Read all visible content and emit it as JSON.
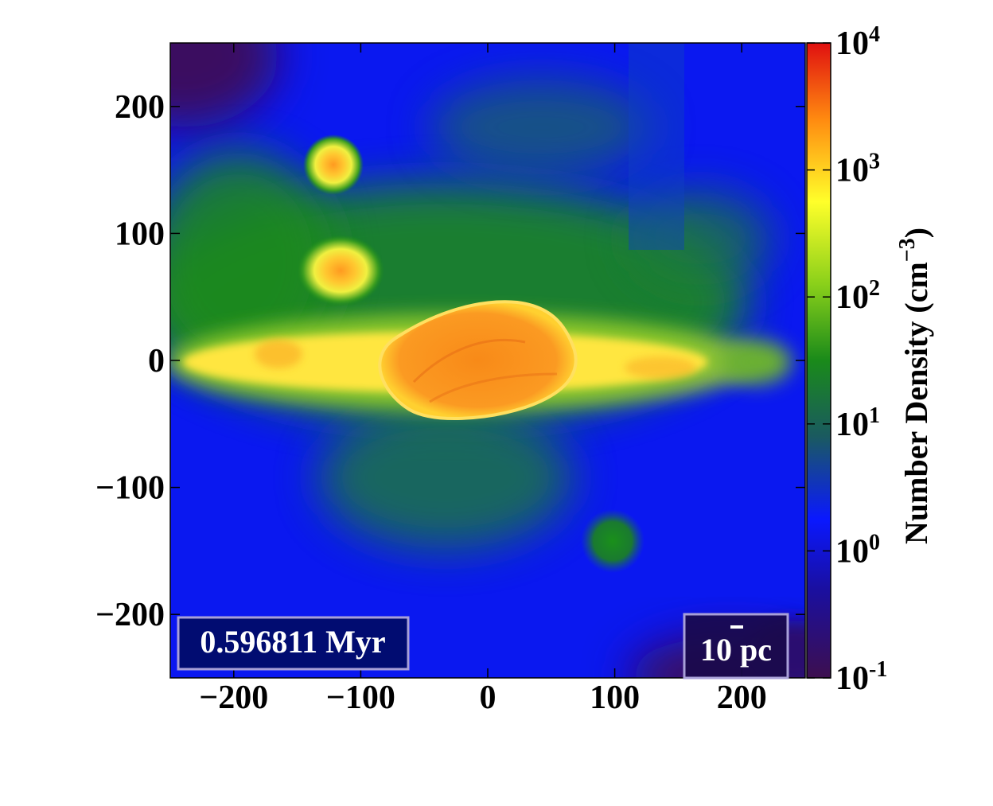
{
  "chart_data": {
    "type": "heatmap",
    "title": "",
    "xlabel": "",
    "ylabel": "",
    "xlim": [
      -250,
      250
    ],
    "ylim": [
      -250,
      250
    ],
    "x_ticks": [
      -200,
      -100,
      0,
      100,
      200
    ],
    "y_ticks": [
      200,
      100,
      0,
      -100,
      -200
    ],
    "x_tick_labels": [
      "−200",
      "−100",
      "0",
      "100",
      "200"
    ],
    "y_tick_labels": [
      "200",
      "100",
      "0",
      "−100",
      "−200"
    ],
    "colorbar": {
      "label": "Number Density (cm",
      "label_exp": "−3",
      "label_close": ")",
      "scale": "log",
      "range": [
        0.1,
        10000
      ],
      "ticks": [
        {
          "value": 10000,
          "base": "10",
          "exp": "4"
        },
        {
          "value": 1000,
          "base": "10",
          "exp": "3"
        },
        {
          "value": 100,
          "base": "10",
          "exp": "2"
        },
        {
          "value": 10,
          "base": "10",
          "exp": "1"
        },
        {
          "value": 1,
          "base": "10",
          "exp": "0"
        },
        {
          "value": 0.1,
          "base": "10",
          "exp": "-1"
        }
      ],
      "colors": [
        "#3d0f4f",
        "#1a0fa0",
        "#0a18ff",
        "#1a8a1a",
        "#ffff2a",
        "#ff8a10",
        "#e01010"
      ]
    },
    "annotations": {
      "time_label": "0.596811 Myr",
      "scale_bar": {
        "value": "10",
        "unit": "pc"
      }
    },
    "features": [
      {
        "shape": "ellipse",
        "center": [
          -120,
          155
        ],
        "density_peak": 500
      },
      {
        "shape": "ellipse",
        "center": [
          -115,
          72
        ],
        "density_peak": 700
      },
      {
        "shape": "elongated filament",
        "center": [
          -30,
          0
        ],
        "density_peak": 1500
      },
      {
        "shape": "central cloud",
        "center": [
          10,
          0
        ],
        "density_peak": 2000
      },
      {
        "shape": "diffuse clump",
        "center": [
          210,
          0
        ],
        "density_peak": 30
      },
      {
        "shape": "diffuse clump",
        "center": [
          100,
          -140
        ],
        "density_peak": 6
      }
    ]
  }
}
